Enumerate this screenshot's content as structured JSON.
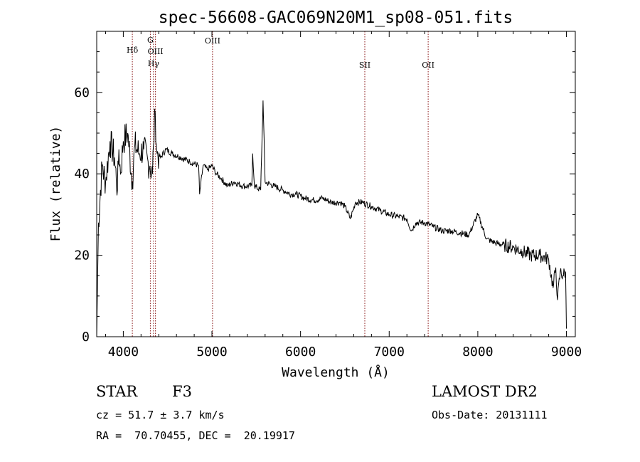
{
  "chart_data": {
    "type": "line",
    "title": "spec-56608-GAC069N20M1_sp08-051.fits",
    "xlabel": "Wavelength (Å)",
    "ylabel": "Flux (relative)",
    "xlim": [
      3700,
      9100
    ],
    "ylim": [
      0,
      75
    ],
    "xticks": [
      4000,
      5000,
      6000,
      7000,
      8000,
      9000
    ],
    "yticks": [
      0,
      20,
      40,
      60
    ],
    "grid": false,
    "series": [
      {
        "x": [
          3700,
          3720,
          3760,
          3800,
          3850,
          3900,
          3934,
          3950,
          3969,
          4000,
          4050,
          4102,
          4130,
          4180,
          4230,
          4280,
          4300,
          4330,
          4340,
          4360,
          4380,
          4420,
          4480,
          4550,
          4650,
          4750,
          4850,
          4861,
          4900,
          4950,
          5000,
          5050,
          5100,
          5175,
          5250,
          5350,
          5450,
          5460,
          5480,
          5550,
          5577,
          5600,
          5700,
          5800,
          5893,
          5950,
          6050,
          6150,
          6250,
          6350,
          6450,
          6500,
          6563,
          6620,
          6700,
          6800,
          6900,
          7000,
          7100,
          7200,
          7250,
          7300,
          7400,
          7500,
          7600,
          7700,
          7800,
          7900,
          8000,
          8100,
          8200,
          8300,
          8400,
          8500,
          8600,
          8700,
          8800,
          8850,
          8880,
          8900,
          8930,
          8960,
          8990,
          9000
        ],
        "y": [
          0,
          28,
          42,
          38,
          48,
          44,
          36,
          46,
          40,
          48,
          50,
          38,
          47,
          45,
          46,
          43,
          42,
          40,
          47,
          55,
          45,
          44,
          46,
          45,
          44,
          43,
          42,
          35,
          42,
          41,
          42,
          40,
          39,
          37,
          38,
          37,
          37,
          45,
          37,
          36,
          58,
          38,
          37,
          36,
          35,
          35,
          34,
          33.5,
          34,
          33,
          33,
          32,
          29,
          33,
          33,
          32,
          31,
          30,
          29.5,
          29,
          26,
          28,
          28,
          27,
          26,
          26,
          25.5,
          25,
          30,
          24,
          23,
          22.5,
          22,
          21,
          20,
          20,
          19,
          12,
          17,
          9,
          16,
          15,
          16,
          2
        ]
      }
    ],
    "spectral_lines": [
      {
        "label": "Hδ",
        "x": 4102
      },
      {
        "label": "G",
        "x": 4305
      },
      {
        "label": "OIII",
        "x": 4363
      },
      {
        "label": "Hγ",
        "x": 4341
      },
      {
        "label": "OIII",
        "x": 5007
      },
      {
        "label": "SII",
        "x": 6725
      },
      {
        "label": "OII",
        "x": 7440
      }
    ],
    "line_color": "#8b1a1a"
  },
  "info": {
    "class": "STAR",
    "subclass": "F3",
    "survey": "LAMOST DR2",
    "cz": "cz = 51.7 ± 3.7 km/s",
    "obs_date": "Obs-Date: 20131111",
    "coords": "RA =  70.70455, DEC =  20.19917"
  }
}
